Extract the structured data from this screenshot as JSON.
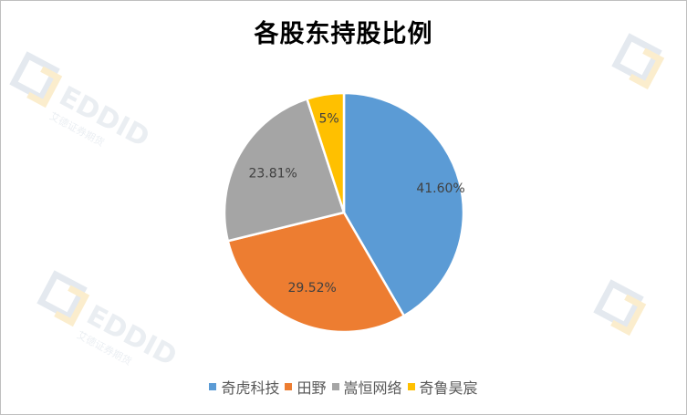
{
  "chart_data": {
    "type": "pie",
    "title": "各股东持股比例",
    "series": [
      {
        "name": "",
        "values": [
          41.6,
          29.52,
          23.81,
          5
        ]
      }
    ],
    "categories": [
      "奇虎科技",
      "田野",
      "嵩恒网络",
      "奇鲁昊宸"
    ],
    "labels": [
      "41.60%",
      "29.52%",
      "23.81%",
      "5%"
    ],
    "colors": [
      "#5b9bd5",
      "#ed7d31",
      "#a5a5a5",
      "#ffc000"
    ],
    "legend_position": "bottom",
    "start_angle": "12 o'clock, clockwise"
  },
  "watermark": {
    "brand": "EDDID",
    "subtitle": "艾德证券期货",
    "logo_colors": [
      "#9fb3c8",
      "#f2c14e"
    ]
  }
}
